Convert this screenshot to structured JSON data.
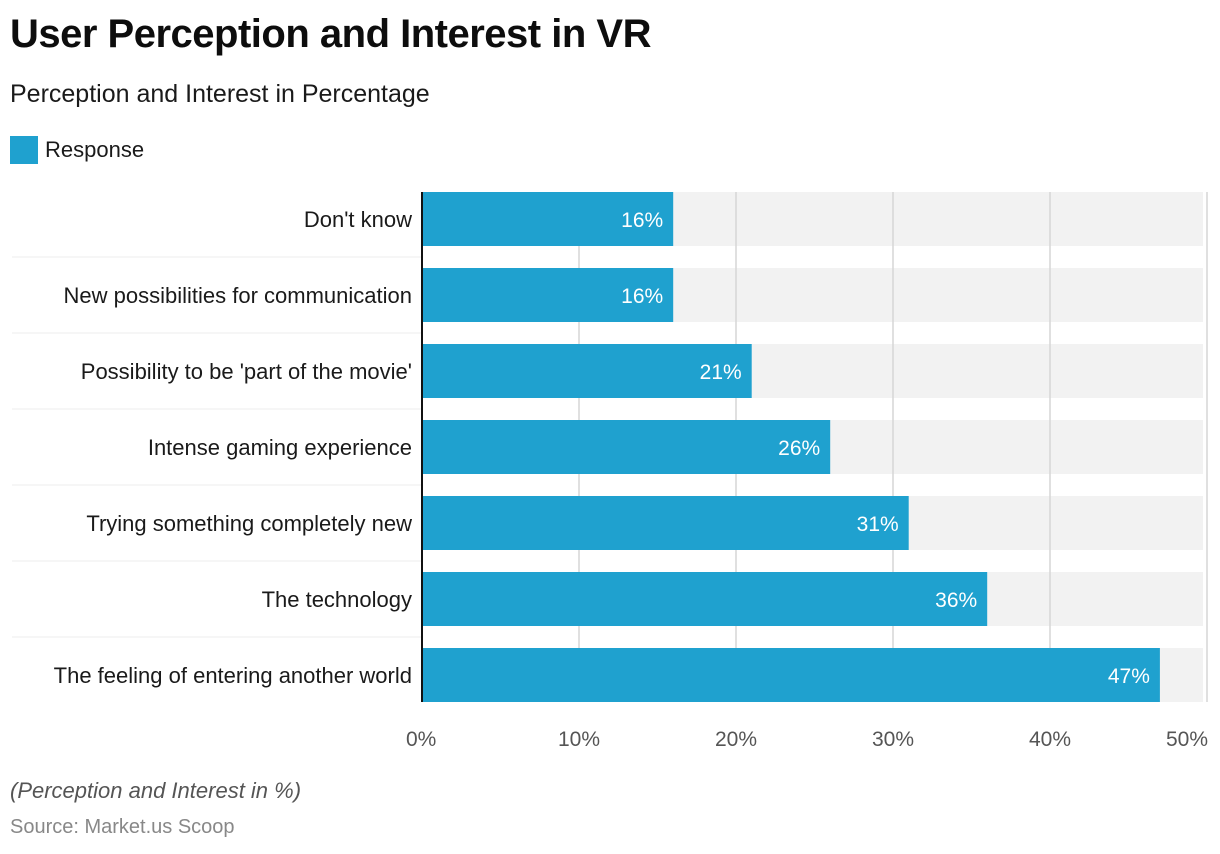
{
  "title": "User Perception and Interest in VR",
  "subtitle": "Perception and Interest in Percentage",
  "legend": {
    "label": "Response",
    "color": "#1fa1cf"
  },
  "note": "(Perception and Interest in %)",
  "source": "Source: Market.us Scoop",
  "chart_data": {
    "type": "bar",
    "orientation": "horizontal",
    "title": "User Perception and Interest in VR",
    "subtitle": "Perception and Interest in Percentage",
    "xlabel": "",
    "ylabel": "",
    "xlim": [
      0,
      50
    ],
    "grid": true,
    "legend_position": "top-left",
    "categories": [
      "Don't know",
      "New possibilities for communication",
      "Possibility to be 'part of the movie'",
      "Intense gaming experience",
      "Trying something completely new",
      "The technology",
      "The feeling of entering another world"
    ],
    "series": [
      {
        "name": "Response",
        "color": "#1fa1cf",
        "values": [
          16,
          16,
          21,
          26,
          31,
          36,
          47
        ]
      }
    ],
    "data_labels": [
      "16%",
      "16%",
      "21%",
      "26%",
      "31%",
      "36%",
      "47%"
    ],
    "x_ticks": [
      0,
      10,
      20,
      30,
      40,
      50
    ],
    "x_tick_labels": [
      "0%",
      "10%",
      "20%",
      "30%",
      "40%",
      "50%"
    ]
  }
}
